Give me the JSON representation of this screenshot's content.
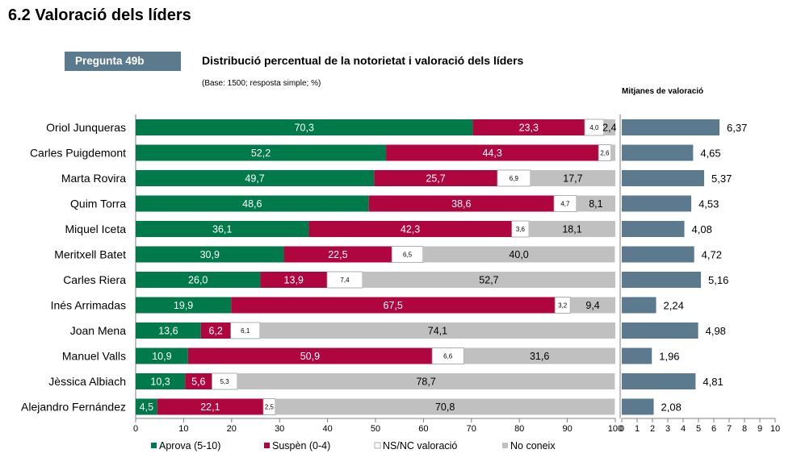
{
  "page": {
    "section_title": "6.2 Valoració dels líders",
    "question_label": "Pregunta 49b",
    "chart_title": "Distribució percentual de la notorietat i valoració dels líders",
    "base_note": "(Base: 1500; resposta simple; %)",
    "means_title": "Mitjanes de valoració"
  },
  "colors": {
    "aprova": "#007a4a",
    "suspen": "#b0063f",
    "nsnc": "#ffffff",
    "noconeix": "#c0c0c0",
    "mean_bar": "#5b7a8e"
  },
  "chart_data": [
    {
      "type": "bar",
      "orientation": "horizontal",
      "stacked": true,
      "categories": [
        "Oriol Junqueras",
        "Carles Puigdemont",
        "Marta Rovira",
        "Quim Torra",
        "Miquel Iceta",
        "Meritxell Batet",
        "Carles Riera",
        "Inés Arrimadas",
        "Joan Mena",
        "Manuel Valls",
        "Jèssica Albiach",
        "Alejandro Fernández"
      ],
      "series": [
        {
          "name": "Aprova (5-10)",
          "values": [
            70.3,
            52.2,
            49.7,
            48.6,
            36.1,
            30.9,
            26.0,
            19.9,
            13.6,
            10.9,
            10.3,
            4.5
          ],
          "labels": [
            "70,3",
            "52,2",
            "49,7",
            "48,6",
            "36,1",
            "30,9",
            "26,0",
            "19,9",
            "13,6",
            "10,9",
            "10,3",
            "4,5"
          ]
        },
        {
          "name": "Suspèn (0-4)",
          "values": [
            23.3,
            44.3,
            25.7,
            38.6,
            42.3,
            22.5,
            13.9,
            67.5,
            6.2,
            50.9,
            5.6,
            22.1
          ],
          "labels": [
            "23,3",
            "44,3",
            "25,7",
            "38,6",
            "42,3",
            "22,5",
            "13,9",
            "67,5",
            "6,2",
            "50,9",
            "5,6",
            "22,1"
          ]
        },
        {
          "name": "NS/NC valoració",
          "values": [
            4.0,
            2.6,
            6.9,
            4.7,
            3.6,
            6.5,
            7.4,
            3.2,
            6.1,
            6.6,
            5.3,
            2.5
          ],
          "labels": [
            "4,0",
            "2,6",
            "6,9",
            "4,7",
            "3,6",
            "6,5",
            "7,4",
            "3,2",
            "6,1",
            "6,6",
            "5,3",
            "2,5"
          ]
        },
        {
          "name": "No coneix",
          "values": [
            2.4,
            0.9,
            17.7,
            8.1,
            18.1,
            40.0,
            52.7,
            9.4,
            74.1,
            31.6,
            78.7,
            70.8
          ],
          "labels": [
            "2,4",
            "",
            "17,7",
            "8,1",
            "18,1",
            "40,0",
            "52,7",
            "9,4",
            "74,1",
            "31,6",
            "78,7",
            "70,8"
          ]
        }
      ],
      "xlim": [
        0,
        100
      ],
      "xticks": [
        "0",
        "10",
        "20",
        "30",
        "40",
        "50",
        "60",
        "70",
        "80",
        "90",
        "100"
      ],
      "legend": [
        "Aprova (5-10)",
        "Suspèn (0-4)",
        "NS/NC valoració",
        "No coneix"
      ],
      "legend_position": "bottom"
    },
    {
      "type": "bar",
      "orientation": "horizontal",
      "title": "Mitjanes de valoració",
      "categories": [
        "Oriol Junqueras",
        "Carles Puigdemont",
        "Marta Rovira",
        "Quim Torra",
        "Miquel Iceta",
        "Meritxell Batet",
        "Carles Riera",
        "Inés Arrimadas",
        "Joan Mena",
        "Manuel Valls",
        "Jèssica Albiach",
        "Alejandro Fernández"
      ],
      "values": [
        6.37,
        4.65,
        5.37,
        4.53,
        4.08,
        4.72,
        5.16,
        2.24,
        4.98,
        1.96,
        4.81,
        2.08
      ],
      "labels": [
        "6,37",
        "4,65",
        "5,37",
        "4,53",
        "4,08",
        "4,72",
        "5,16",
        "2,24",
        "4,98",
        "1,96",
        "4,81",
        "2,08"
      ],
      "xlim": [
        0,
        10
      ],
      "xticks": [
        "0",
        "1",
        "2",
        "3",
        "4",
        "5",
        "6",
        "7",
        "8",
        "9",
        "10"
      ]
    }
  ]
}
